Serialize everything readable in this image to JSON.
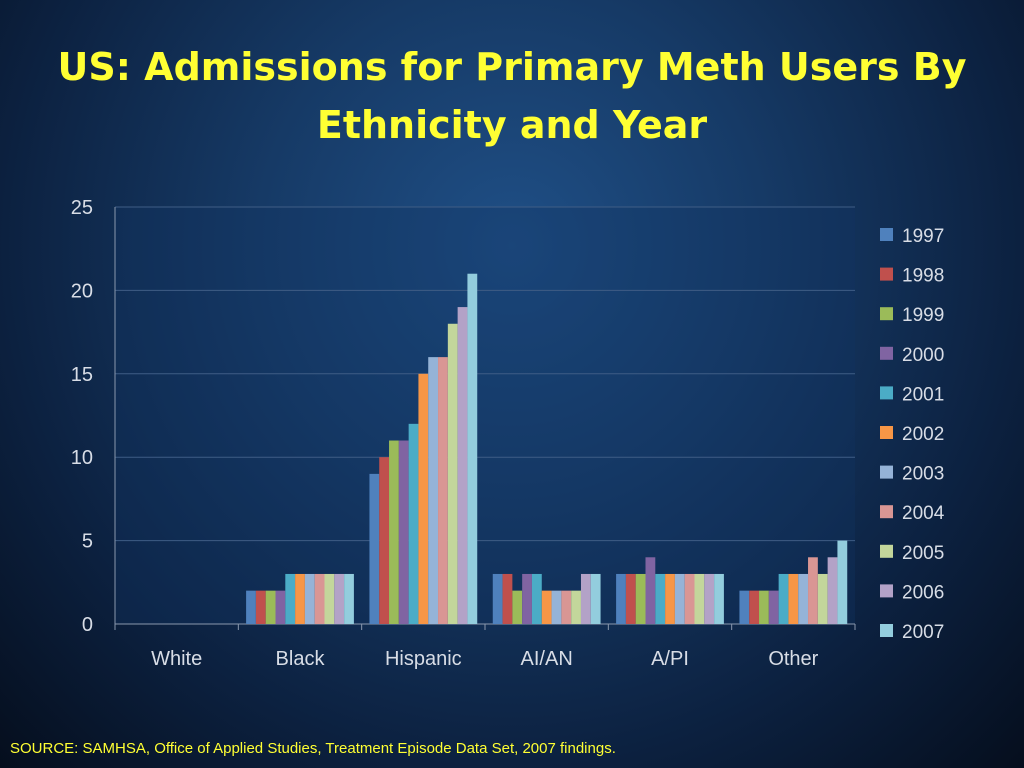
{
  "slide": {
    "title": "US: Admissions for Primary Meth Users By Ethnicity and Year",
    "source": "SOURCE: SAMHSA, Office of Applied Studies, Treatment Episode Data Set, 2007 findings."
  },
  "chart_data": {
    "type": "bar",
    "title": "US: Admissions for Primary Meth Users By Ethnicity and Year",
    "xlabel": "",
    "ylabel": "",
    "ylim": [
      0,
      25
    ],
    "yticks": [
      0,
      5,
      10,
      15,
      20,
      25
    ],
    "grid": true,
    "legend_position": "right",
    "categories": [
      "White",
      "Black",
      "Hispanic",
      "AI/AN",
      "A/PI",
      "Other"
    ],
    "series": [
      {
        "name": "1997",
        "color": "#4f81bd",
        "values": [
          0,
          2,
          9,
          3,
          3,
          2
        ]
      },
      {
        "name": "1998",
        "color": "#c0504d",
        "values": [
          0,
          2,
          10,
          3,
          3,
          2
        ]
      },
      {
        "name": "1999",
        "color": "#9bbb59",
        "values": [
          0,
          2,
          11,
          2,
          3,
          2
        ]
      },
      {
        "name": "2000",
        "color": "#8064a2",
        "values": [
          0,
          2,
          11,
          3,
          4,
          2
        ]
      },
      {
        "name": "2001",
        "color": "#4bacc6",
        "values": [
          0,
          3,
          12,
          3,
          3,
          3
        ]
      },
      {
        "name": "2002",
        "color": "#f79646",
        "values": [
          0,
          3,
          15,
          2,
          3,
          3
        ]
      },
      {
        "name": "2003",
        "color": "#95b3d7",
        "values": [
          0,
          3,
          16,
          2,
          3,
          3
        ]
      },
      {
        "name": "2004",
        "color": "#d99694",
        "values": [
          0,
          3,
          16,
          2,
          3,
          4
        ]
      },
      {
        "name": "2005",
        "color": "#c3d69b",
        "values": [
          0,
          3,
          18,
          2,
          3,
          3
        ]
      },
      {
        "name": "2006",
        "color": "#b3a2c7",
        "values": [
          0,
          3,
          19,
          3,
          3,
          4
        ]
      },
      {
        "name": "2007",
        "color": "#93cddd",
        "values": [
          0,
          3,
          21,
          3,
          3,
          5
        ]
      }
    ]
  }
}
